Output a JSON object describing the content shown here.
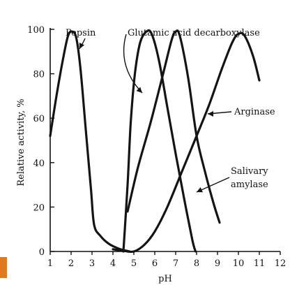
{
  "chart_data": {
    "type": "line",
    "xlabel": "pH",
    "ylabel": "Relative activity, %",
    "xlim": [
      1,
      12
    ],
    "ylim": [
      0,
      100
    ],
    "xticks": [
      1,
      2,
      3,
      4,
      5,
      6,
      7,
      8,
      9,
      10,
      11,
      12
    ],
    "yticks": [
      {
        "value": 0,
        "label": "0"
      },
      {
        "value": 20,
        "label": "20"
      },
      {
        "value": 40,
        "label": "40"
      },
      {
        "value": 60,
        "label": "60"
      },
      {
        "value": 80,
        "label": "80"
      },
      {
        "value": 100,
        "label": "100"
      }
    ],
    "grid": false,
    "series": [
      {
        "name": "Pepsin",
        "points": [
          [
            1.0,
            52
          ],
          [
            1.3,
            70
          ],
          [
            1.6,
            86
          ],
          [
            1.85,
            97
          ],
          [
            2.05,
            99
          ],
          [
            2.25,
            96
          ],
          [
            2.45,
            82
          ],
          [
            2.7,
            55
          ],
          [
            2.95,
            28
          ],
          [
            3.1,
            12
          ],
          [
            3.4,
            7
          ],
          [
            3.8,
            3.5
          ],
          [
            4.3,
            1.2
          ],
          [
            4.8,
            0
          ]
        ]
      },
      {
        "name": "Glutamic acid decarboxylase",
        "points": [
          [
            4.5,
            0
          ],
          [
            4.7,
            30
          ],
          [
            4.85,
            58
          ],
          [
            5.05,
            80
          ],
          [
            5.3,
            94
          ],
          [
            5.6,
            99
          ],
          [
            5.85,
            98
          ],
          [
            6.2,
            86
          ],
          [
            6.6,
            65
          ],
          [
            7.0,
            44
          ],
          [
            7.4,
            24
          ],
          [
            7.8,
            5
          ],
          [
            7.95,
            0
          ]
        ]
      },
      {
        "name": "Arginase",
        "points": [
          [
            4.7,
            18
          ],
          [
            5.2,
            38
          ],
          [
            5.8,
            58
          ],
          [
            6.4,
            80
          ],
          [
            6.8,
            95
          ],
          [
            7.0,
            99
          ],
          [
            7.2,
            97
          ],
          [
            7.6,
            78
          ],
          [
            8.0,
            52
          ],
          [
            8.4,
            36
          ],
          [
            8.8,
            22
          ],
          [
            9.1,
            13
          ]
        ]
      },
      {
        "name": "Salivary amylase",
        "points": [
          [
            4.0,
            1
          ],
          [
            4.5,
            0.3
          ],
          [
            5.0,
            0
          ],
          [
            5.5,
            3
          ],
          [
            6.0,
            9
          ],
          [
            6.6,
            20
          ],
          [
            7.3,
            36
          ],
          [
            8.0,
            52
          ],
          [
            8.6,
            66
          ],
          [
            9.2,
            82
          ],
          [
            9.7,
            94
          ],
          [
            10.0,
            98
          ],
          [
            10.3,
            97
          ],
          [
            10.7,
            88
          ],
          [
            11.0,
            77
          ]
        ]
      }
    ],
    "annotations": [
      {
        "series": "Pepsin",
        "text": "Pepsin"
      },
      {
        "series": "Glutamic acid decarboxylase",
        "text": "Glutamic acid decarboxylase"
      },
      {
        "series": "Arginase",
        "text": "Arginase"
      },
      {
        "series": "Salivary amylase",
        "lines": [
          "Salivary",
          "amylase"
        ]
      }
    ]
  }
}
